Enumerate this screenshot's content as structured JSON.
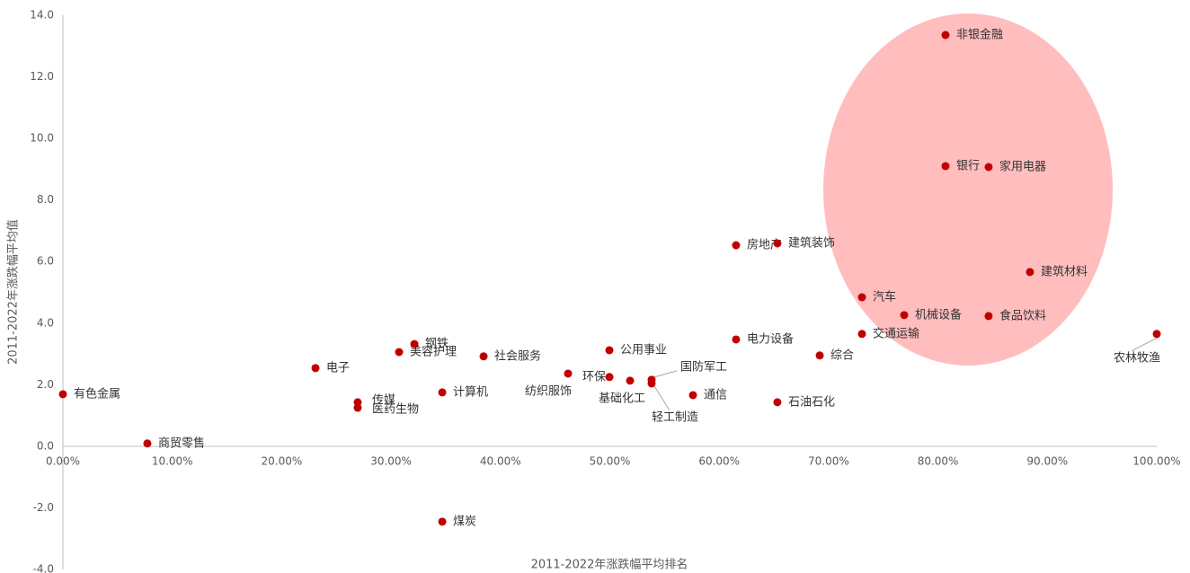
{
  "chart_data": {
    "type": "scatter",
    "xlabel": "2011-2022年涨跌幅平均排名",
    "ylabel": "2011-2022年涨跌幅平均值",
    "color": "#c00000",
    "xlim": [
      0,
      100
    ],
    "xticks": [
      {
        "value": 0,
        "label": "0.00%"
      },
      {
        "value": 10,
        "label": "10.00%"
      },
      {
        "value": 20,
        "label": "20.00%"
      },
      {
        "value": 30,
        "label": "30.00%"
      },
      {
        "value": 40,
        "label": "40.00%"
      },
      {
        "value": 50,
        "label": "50.00%"
      },
      {
        "value": 60,
        "label": "60.00%"
      },
      {
        "value": 70,
        "label": "70.00%"
      },
      {
        "value": 80,
        "label": "80.00%"
      },
      {
        "value": 90,
        "label": "90.00%"
      },
      {
        "value": 100,
        "label": "100.00%"
      }
    ],
    "ylim": [
      -4,
      14
    ],
    "yticks": [
      {
        "value": -4,
        "label": "-4.0"
      },
      {
        "value": -2,
        "label": "-2.0"
      },
      {
        "value": 0,
        "label": "0.0"
      },
      {
        "value": 2,
        "label": "2.0"
      },
      {
        "value": 4,
        "label": "4.0"
      },
      {
        "value": 6,
        "label": "6.0"
      },
      {
        "value": 8,
        "label": "8.0"
      },
      {
        "value": 10,
        "label": "10.0"
      },
      {
        "value": 12,
        "label": "12.0"
      },
      {
        "value": 14,
        "label": "14.0"
      }
    ],
    "labels": [
      "有色金属",
      "商贸零售",
      "电子",
      "传媒",
      "医药生物",
      "美容护理",
      "钢铁",
      "计算机",
      "煤炭",
      "社会服务",
      "纺织服饰",
      "环保",
      "公用事业",
      "基础化工",
      "国防军工",
      "轻工制造",
      "通信",
      "房地产",
      "电力设备",
      "建筑装饰",
      "石油石化",
      "综合",
      "汽车",
      "交通运输",
      "机械设备",
      "非银金融",
      "银行",
      "家用电器",
      "食品饮料",
      "建筑材料",
      "农林牧渔"
    ],
    "x": [
      0,
      7.72,
      23.09,
      26.95,
      26.95,
      30.73,
      32.13,
      34.68,
      34.68,
      38.46,
      46.18,
      49.96,
      49.96,
      51.85,
      53.82,
      53.82,
      57.6,
      61.54,
      61.54,
      65.32,
      65.32,
      69.19,
      73.05,
      73.05,
      76.91,
      80.69,
      80.69,
      84.63,
      84.63,
      88.41,
      100
    ],
    "values": [
      1.69,
      0.09,
      2.54,
      1.43,
      1.25,
      3.06,
      3.32,
      1.75,
      -2.45,
      2.92,
      2.36,
      2.25,
      3.12,
      2.13,
      2.16,
      2.04,
      1.66,
      6.53,
      3.47,
      6.59,
      1.43,
      2.95,
      4.84,
      3.65,
      4.26,
      13.36,
      9.1,
      9.07,
      4.23,
      5.66,
      3.65
    ]
  }
}
